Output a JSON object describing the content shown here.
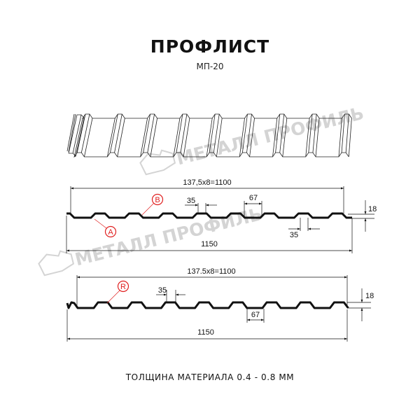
{
  "title": "ПРОФЛИСТ",
  "subtitle": "МП-20",
  "footer": "ТОЛЩИНА МАТЕРИАЛА 0.4 - 0.8 ММ",
  "watermark": "МЕТАЛЛ ПРОФИЛЬ",
  "colors": {
    "line": "#111111",
    "callout": "#e02020",
    "watermark": "#d4d4d4"
  },
  "profile_a": {
    "pitch_label": "137,5x8=1100",
    "total_width": "1150",
    "rib_top": "35",
    "rib_bottom": "35",
    "gap": "67",
    "height": "18",
    "callouts": [
      "A",
      "B"
    ]
  },
  "profile_r": {
    "pitch_label": "137.5x8=1100",
    "total_width": "1150",
    "rib_top": "35",
    "gap": "67",
    "height": "18",
    "callouts": [
      "R"
    ]
  }
}
